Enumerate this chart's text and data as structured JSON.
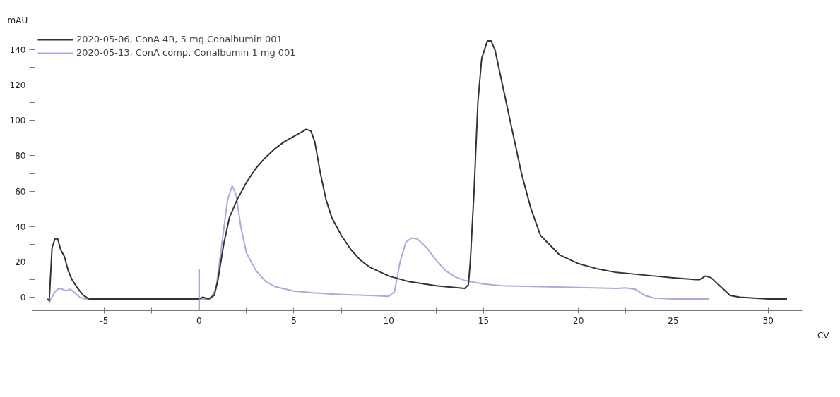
{
  "chart_data": {
    "type": "line",
    "xlabel": "CV",
    "ylabel": "mAU",
    "legend": "top left",
    "grid": false,
    "marker": "none",
    "line_style": "solid",
    "xlim": [
      -8.8,
      31.8
    ],
    "ylim": [
      -7.6,
      152
    ],
    "xticks": [
      {
        "value": -7.5,
        "label": null
      },
      -5,
      {
        "value": -2.5,
        "label": null
      },
      0,
      {
        "value": 2.5,
        "label": null
      },
      5,
      {
        "value": 7.5,
        "label": null
      },
      10,
      {
        "value": 12.5,
        "label": null
      },
      15,
      {
        "value": 17.5,
        "label": null
      },
      20,
      {
        "value": 22.5,
        "label": null
      },
      25,
      {
        "value": 27.5,
        "label": null
      },
      30
    ],
    "yticks": [
      0,
      {
        "value": 10,
        "label": null
      },
      20,
      {
        "value": 30,
        "label": null
      },
      40,
      {
        "value": 50,
        "label": null
      },
      60,
      {
        "value": 70,
        "label": null
      },
      80,
      {
        "value": 90,
        "label": null
      },
      100,
      {
        "value": 110,
        "label": null
      },
      120,
      {
        "value": 130,
        "label": null
      },
      140,
      {
        "value": 150,
        "label": null
      }
    ],
    "series": [
      {
        "name": "2020-05-13, ConA comp. Conalbumin 1 mg 001",
        "color": "#a9abdc",
        "x": [
          -7.9,
          -7.6,
          -7.4,
          -7.2,
          -7.0,
          -6.8,
          -6.6,
          -6.3,
          -6.0,
          -3.0,
          0.0,
          0.6,
          0.9,
          1.2,
          1.5,
          1.75,
          1.95,
          2.2,
          2.5,
          3.0,
          3.5,
          4.0,
          5.0,
          6.0,
          7.0,
          8.0,
          9.0,
          10.0,
          10.3,
          10.6,
          10.9,
          11.2,
          11.5,
          12.0,
          12.5,
          13.0,
          13.5,
          14.0,
          15.0,
          16.0,
          18.0,
          20.0,
          22.0,
          22.5,
          23.0,
          23.5,
          24.0,
          25.0,
          26.9
        ],
        "values": [
          -3,
          3,
          5,
          4.5,
          3.5,
          4.5,
          3,
          0,
          -1,
          -1,
          -1,
          -1,
          5,
          30,
          55,
          63,
          58,
          40,
          25,
          15,
          9,
          6,
          3.5,
          2.5,
          1.8,
          1.3,
          1,
          0.5,
          3,
          20,
          31,
          33.5,
          33,
          28,
          21,
          15,
          11.5,
          9.5,
          7.5,
          6.5,
          6,
          5.5,
          5,
          5.3,
          4.5,
          1,
          -0.5,
          -1,
          -1
        ]
      },
      {
        "name": "2020-05-06, ConA 4B, 5 mg Conalbumin 001",
        "color": "#333333",
        "x": [
          -8.0,
          -7.9,
          -7.75,
          -7.6,
          -7.45,
          -7.3,
          -7.1,
          -6.9,
          -6.7,
          -6.4,
          -6.1,
          -5.8,
          -5.0,
          0.0,
          0.2,
          0.5,
          0.8,
          1.0,
          1.3,
          1.6,
          2.0,
          2.5,
          3.0,
          3.5,
          4.0,
          4.5,
          5.0,
          5.5,
          5.65,
          5.9,
          6.1,
          6.4,
          6.7,
          7.0,
          7.5,
          8.0,
          8.5,
          9.0,
          10.0,
          11.0,
          12.5,
          14.0,
          14.2,
          14.3,
          14.5,
          14.7,
          14.9,
          15.2,
          15.4,
          15.6,
          16.0,
          16.5,
          17.0,
          17.5,
          18.0,
          19.0,
          20.0,
          21.0,
          22.0,
          23.0,
          24.0,
          25.0,
          26.2,
          26.4,
          26.7,
          27.0,
          27.5,
          28.0,
          28.5,
          30.0,
          31.0
        ],
        "values": [
          -1,
          -2,
          28,
          33,
          33,
          27,
          23,
          15,
          10,
          5,
          1,
          -1,
          -1,
          -1,
          0,
          -1,
          1,
          10,
          30,
          45,
          55,
          65,
          73,
          79,
          84,
          88,
          91,
          94,
          95,
          94,
          88,
          70,
          55,
          45,
          35,
          27,
          21,
          17,
          12,
          9,
          6.5,
          5,
          7,
          20,
          60,
          110,
          135,
          145,
          145,
          140,
          120,
          95,
          70,
          50,
          35,
          24,
          19,
          16,
          14,
          13,
          12,
          11,
          10,
          10,
          12,
          11,
          6,
          1,
          0,
          -1,
          -1
        ]
      },
      {
        "color": "#8c8fcc",
        "x": [
          0,
          0
        ],
        "values": [
          -7.6,
          16
        ]
      }
    ]
  }
}
